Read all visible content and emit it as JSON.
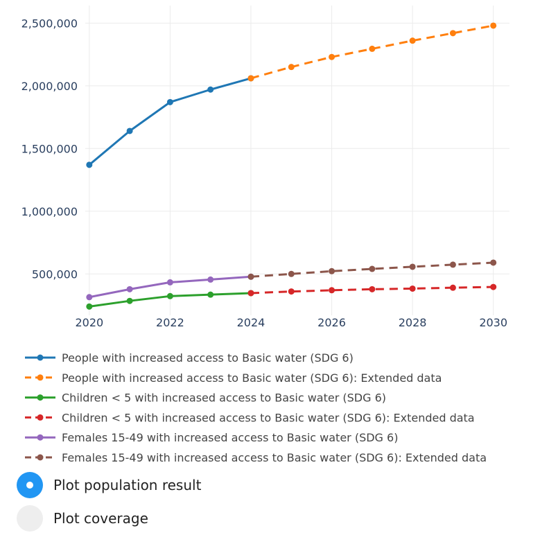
{
  "chart_data": {
    "type": "line",
    "x_ticks": [
      "2020",
      "2022",
      "2024",
      "2026",
      "2028",
      "2030"
    ],
    "y_ticks": [
      "500,000",
      "1,000,000",
      "1,500,000",
      "2,000,000",
      "2,500,000"
    ],
    "xlim": [
      2019.9,
      2030.4
    ],
    "ylim": [
      170000,
      2640000
    ],
    "grid": true,
    "legend_position": "bottom",
    "series": [
      {
        "name": "People with increased access to Basic water (SDG 6)",
        "color": "#1f77b4",
        "dash": false,
        "x": [
          2020,
          2021,
          2022,
          2023,
          2024
        ],
        "y": [
          1370000,
          1640000,
          1870000,
          1970000,
          2060000
        ]
      },
      {
        "name": "People with increased access to Basic water (SDG 6): Extended data",
        "color": "#ff7f0e",
        "dash": true,
        "x": [
          2024,
          2025,
          2026,
          2027,
          2028,
          2029,
          2030
        ],
        "y": [
          2060000,
          2150000,
          2230000,
          2295000,
          2360000,
          2420000,
          2480000
        ]
      },
      {
        "name": "Children < 5 with increased access to Basic water (SDG 6)",
        "color": "#2ca02c",
        "dash": false,
        "x": [
          2020,
          2021,
          2022,
          2023,
          2024
        ],
        "y": [
          240000,
          285000,
          323000,
          335000,
          347000
        ]
      },
      {
        "name": "Children < 5 with increased access to Basic water (SDG 6): Extended data",
        "color": "#d62728",
        "dash": true,
        "x": [
          2024,
          2025,
          2026,
          2027,
          2028,
          2029,
          2030
        ],
        "y": [
          347000,
          360000,
          370000,
          378000,
          383000,
          390000,
          396000
        ]
      },
      {
        "name": "Females 15-49 with increased access to Basic water (SDG 6)",
        "color": "#9467bd",
        "dash": false,
        "x": [
          2020,
          2021,
          2022,
          2023,
          2024
        ],
        "y": [
          315000,
          378000,
          433000,
          455000,
          478000
        ]
      },
      {
        "name": "Females 15-49 with increased access to Basic water (SDG 6): Extended data",
        "color": "#8c564b",
        "dash": true,
        "x": [
          2024,
          2025,
          2026,
          2027,
          2028,
          2029,
          2030
        ],
        "y": [
          478000,
          500000,
          522000,
          540000,
          557000,
          574000,
          590000
        ]
      }
    ]
  },
  "controls": {
    "options": [
      {
        "label": "Plot population result",
        "selected": true
      },
      {
        "label": "Plot coverage",
        "selected": false
      }
    ]
  }
}
